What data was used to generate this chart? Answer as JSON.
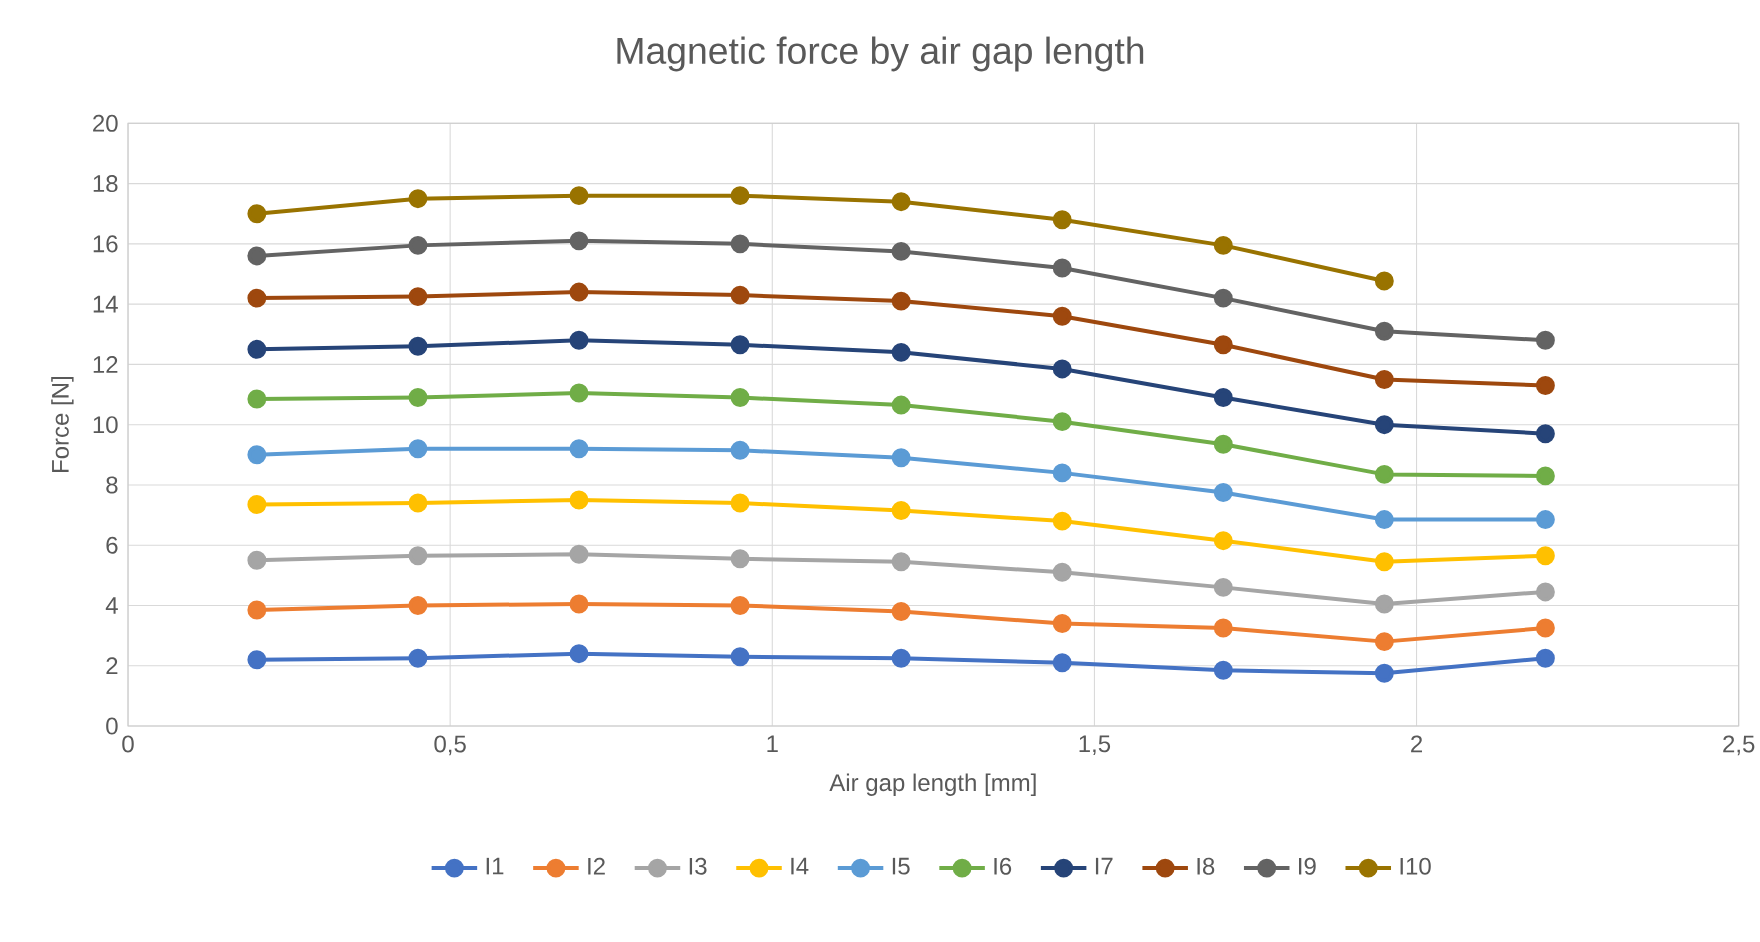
{
  "chart_data": {
    "type": "line",
    "title": "Magnetic force by  air gap length",
    "xlabel": "Air gap length [mm]",
    "ylabel": "Force [N]",
    "x": [
      0.2,
      0.45,
      0.7,
      0.95,
      1.2,
      1.45,
      1.7,
      1.95,
      2.2
    ],
    "xlim": [
      0,
      2.5
    ],
    "xticks": [
      0,
      {
        "value": 0.5,
        "label": "0,5"
      },
      1,
      {
        "value": 1.5,
        "label": "1,5"
      },
      2,
      {
        "value": 2.5,
        "label": "2,5"
      }
    ],
    "ylim": [
      0,
      20
    ],
    "yticks": [
      0,
      2,
      4,
      6,
      8,
      10,
      12,
      14,
      16,
      18,
      20
    ],
    "grid": true,
    "legend": "bottom",
    "marker": "circle",
    "line_style": "solid",
    "series": [
      {
        "name": "I1",
        "color": "#4472c4",
        "values": [
          2.2,
          2.25,
          2.4,
          2.3,
          2.25,
          2.1,
          1.85,
          1.75,
          2.25
        ]
      },
      {
        "name": "I2",
        "color": "#ed7d31",
        "values": [
          3.85,
          4.0,
          4.05,
          4.0,
          3.8,
          3.4,
          3.25,
          2.8,
          3.25
        ]
      },
      {
        "name": "I3",
        "color": "#a5a5a5",
        "values": [
          5.5,
          5.65,
          5.7,
          5.55,
          5.45,
          5.1,
          4.6,
          4.05,
          4.45
        ]
      },
      {
        "name": "I4",
        "color": "#ffc000",
        "values": [
          7.35,
          7.4,
          7.5,
          7.4,
          7.15,
          6.8,
          6.15,
          5.45,
          5.65
        ]
      },
      {
        "name": "I5",
        "color": "#5b9bd5",
        "values": [
          9.0,
          9.2,
          9.2,
          9.15,
          8.9,
          8.4,
          7.75,
          6.85,
          6.85
        ]
      },
      {
        "name": "I6",
        "color": "#70ad47",
        "values": [
          10.85,
          10.9,
          11.05,
          10.9,
          10.65,
          10.1,
          9.35,
          8.35,
          8.3
        ]
      },
      {
        "name": "I7",
        "color": "#264478",
        "values": [
          12.5,
          12.6,
          12.8,
          12.65,
          12.4,
          11.85,
          10.9,
          10.0,
          9.7
        ]
      },
      {
        "name": "I8",
        "color": "#9e480e",
        "values": [
          14.2,
          14.25,
          14.4,
          14.3,
          14.1,
          13.6,
          12.65,
          11.5,
          11.3
        ]
      },
      {
        "name": "I9",
        "color": "#636363",
        "values": [
          15.6,
          15.95,
          16.1,
          16.0,
          15.75,
          15.2,
          14.2,
          13.1,
          12.8
        ]
      },
      {
        "name": "I10",
        "color": "#997300",
        "values": [
          17.0,
          17.5,
          17.6,
          17.6,
          17.4,
          16.8,
          15.95,
          14.77,
          null
        ]
      }
    ]
  }
}
